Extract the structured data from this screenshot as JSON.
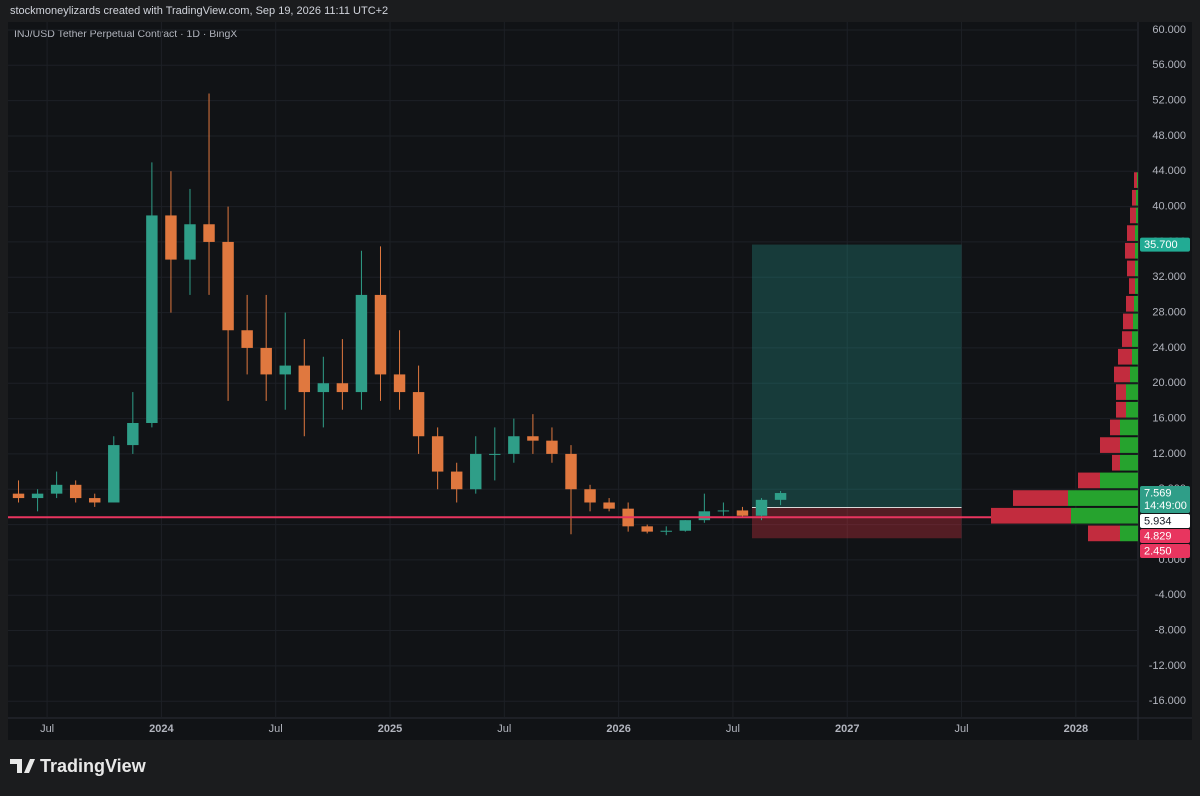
{
  "header": "stockmoneylizards created with TradingView.com, Sep 19, 2026 11:11 UTC+2",
  "footer": {
    "brand": "TradingView"
  },
  "chart_data": {
    "type": "candlestick",
    "title": "INJ/USD Tether Perpetual Contract · 1D · BingX",
    "x": [
      "2023-05",
      "2023-06",
      "2023-07",
      "2023-08",
      "2023-09",
      "2023-10",
      "2023-11",
      "2023-12",
      "2024-01",
      "2024-02",
      "2024-03",
      "2024-04",
      "2024-05",
      "2024-06",
      "2024-07",
      "2024-08",
      "2024-09",
      "2024-10",
      "2024-11",
      "2024-12",
      "2025-01",
      "2025-02",
      "2025-03",
      "2025-04",
      "2025-05",
      "2025-06",
      "2025-07",
      "2025-08",
      "2025-09",
      "2025-10",
      "2025-11",
      "2025-12",
      "2026-01",
      "2026-02",
      "2026-03",
      "2026-04",
      "2026-05",
      "2026-06",
      "2026-07",
      "2026-08",
      "2026-09"
    ],
    "open": [
      7.5,
      7,
      7.5,
      8.5,
      7,
      6.5,
      13,
      15.5,
      39,
      34,
      38,
      36,
      26,
      24,
      21,
      22,
      19,
      20,
      19,
      30,
      21,
      19,
      14,
      10,
      8,
      12,
      12,
      14,
      13.5,
      12,
      8,
      6.5,
      5.8,
      3.8,
      3.2,
      3.3,
      4.5,
      5.5,
      5.6,
      5,
      6.8
    ],
    "high": [
      9,
      8,
      10,
      9,
      7.5,
      14,
      19,
      45,
      44,
      42,
      52.8,
      40,
      30,
      30,
      28,
      25,
      23,
      25,
      35,
      35.5,
      26,
      22,
      15,
      11,
      14,
      15,
      16,
      16.5,
      15,
      13,
      8.5,
      7,
      6.5,
      4,
      3.8,
      4.5,
      7.5,
      6.5,
      6,
      7,
      7.8
    ],
    "low": [
      6.5,
      5.5,
      7,
      6.5,
      6,
      6.5,
      12,
      15,
      28,
      30,
      30,
      18,
      21,
      18,
      17,
      14,
      15,
      17,
      17,
      18,
      17,
      12,
      8,
      6.5,
      7.5,
      9,
      11,
      12,
      11,
      2.9,
      5.5,
      5.5,
      3.2,
      3,
      2.8,
      3.2,
      4.2,
      5,
      4.8,
      4.5,
      6.2
    ],
    "close": [
      7,
      7.5,
      8.5,
      7,
      6.5,
      13,
      15.5,
      39,
      34,
      38,
      36,
      26,
      24,
      21,
      22,
      19,
      20,
      19,
      30,
      21,
      19,
      14,
      10,
      8,
      12,
      12,
      14,
      13.5,
      12,
      8,
      6.5,
      5.8,
      3.8,
      3.2,
      3.3,
      4.5,
      5.5,
      5.6,
      5,
      6.8,
      7.569
    ],
    "up_color": "#2f9e88",
    "down_color": "#e0783f",
    "xlim": [
      "2023-05",
      "2028-04"
    ],
    "xticks": [
      {
        "value": "2023-07",
        "label": "Jul"
      },
      {
        "value": "2024-01",
        "label": "2024"
      },
      {
        "value": "2024-07",
        "label": "Jul"
      },
      {
        "value": "2025-01",
        "label": "2025"
      },
      {
        "value": "2025-07",
        "label": "Jul"
      },
      {
        "value": "2026-01",
        "label": "2026"
      },
      {
        "value": "2026-07",
        "label": "Jul"
      },
      {
        "value": "2027-01",
        "label": "2027"
      },
      {
        "value": "2027-07",
        "label": "Jul"
      },
      {
        "value": "2028-01",
        "label": "2028"
      }
    ],
    "ylim": [
      -17.9,
      60.9
    ],
    "yticks": [
      {
        "value": 60,
        "label": "60.000"
      },
      {
        "value": 56,
        "label": "56.000"
      },
      {
        "value": 52,
        "label": "52.000"
      },
      {
        "value": 48,
        "label": "48.000"
      },
      {
        "value": 44,
        "label": "44.000"
      },
      {
        "value": 40,
        "label": "40.000"
      },
      {
        "value": 36,
        "label": "36.000"
      },
      {
        "value": 32,
        "label": "32.000"
      },
      {
        "value": 28,
        "label": "28.000"
      },
      {
        "value": 24,
        "label": "24.000"
      },
      {
        "value": 20,
        "label": "20.000"
      },
      {
        "value": 16,
        "label": "16.000"
      },
      {
        "value": 12,
        "label": "12.000"
      },
      {
        "value": 8,
        "label": "8.000"
      },
      {
        "value": 4,
        "label": "4.000"
      },
      {
        "value": 0,
        "label": "0.000"
      },
      {
        "value": -4,
        "label": "-4.000"
      },
      {
        "value": -8,
        "label": "-8.000"
      },
      {
        "value": -12,
        "label": "-12.000"
      },
      {
        "value": -16,
        "label": "-16.000"
      }
    ],
    "grid": true,
    "position": {
      "start": "2026-08",
      "end": "2027-07",
      "target": 35.7,
      "entry": 5.934,
      "stop": 2.45
    },
    "horizontal_line": {
      "value": 4.829,
      "color": "#e8355f"
    },
    "price_lines": [
      {
        "value": 35.7,
        "label": "35.700",
        "color": "#22ab94"
      },
      {
        "value": 7.569,
        "label": "7.569",
        "color": "#2f9e88"
      },
      {
        "value": 5.934,
        "label": "5.934",
        "color": "#ffffff"
      },
      {
        "value": 4.829,
        "label": "4.829",
        "color": "#e8355f"
      },
      {
        "value": 2.45,
        "label": "2.450",
        "color": "#e8355f"
      }
    ],
    "countdown": "14:49:00",
    "volume_profile": {
      "bins": [
        2,
        4,
        6,
        8,
        10,
        12,
        14,
        16,
        18,
        20,
        22,
        24,
        26,
        28,
        30,
        32,
        34,
        36,
        38,
        40,
        42,
        44
      ],
      "up": [
        18,
        67,
        70,
        38,
        18,
        18,
        18,
        12,
        12,
        8,
        6,
        6,
        5,
        4,
        3,
        3,
        3,
        3,
        2,
        2,
        1
      ],
      "down": [
        32,
        80,
        55,
        22,
        8,
        20,
        10,
        10,
        10,
        16,
        14,
        10,
        10,
        8,
        6,
        8,
        10,
        8,
        6,
        4,
        3
      ],
      "up_color": "#26a32e",
      "down_color": "#c22c3e"
    }
  }
}
